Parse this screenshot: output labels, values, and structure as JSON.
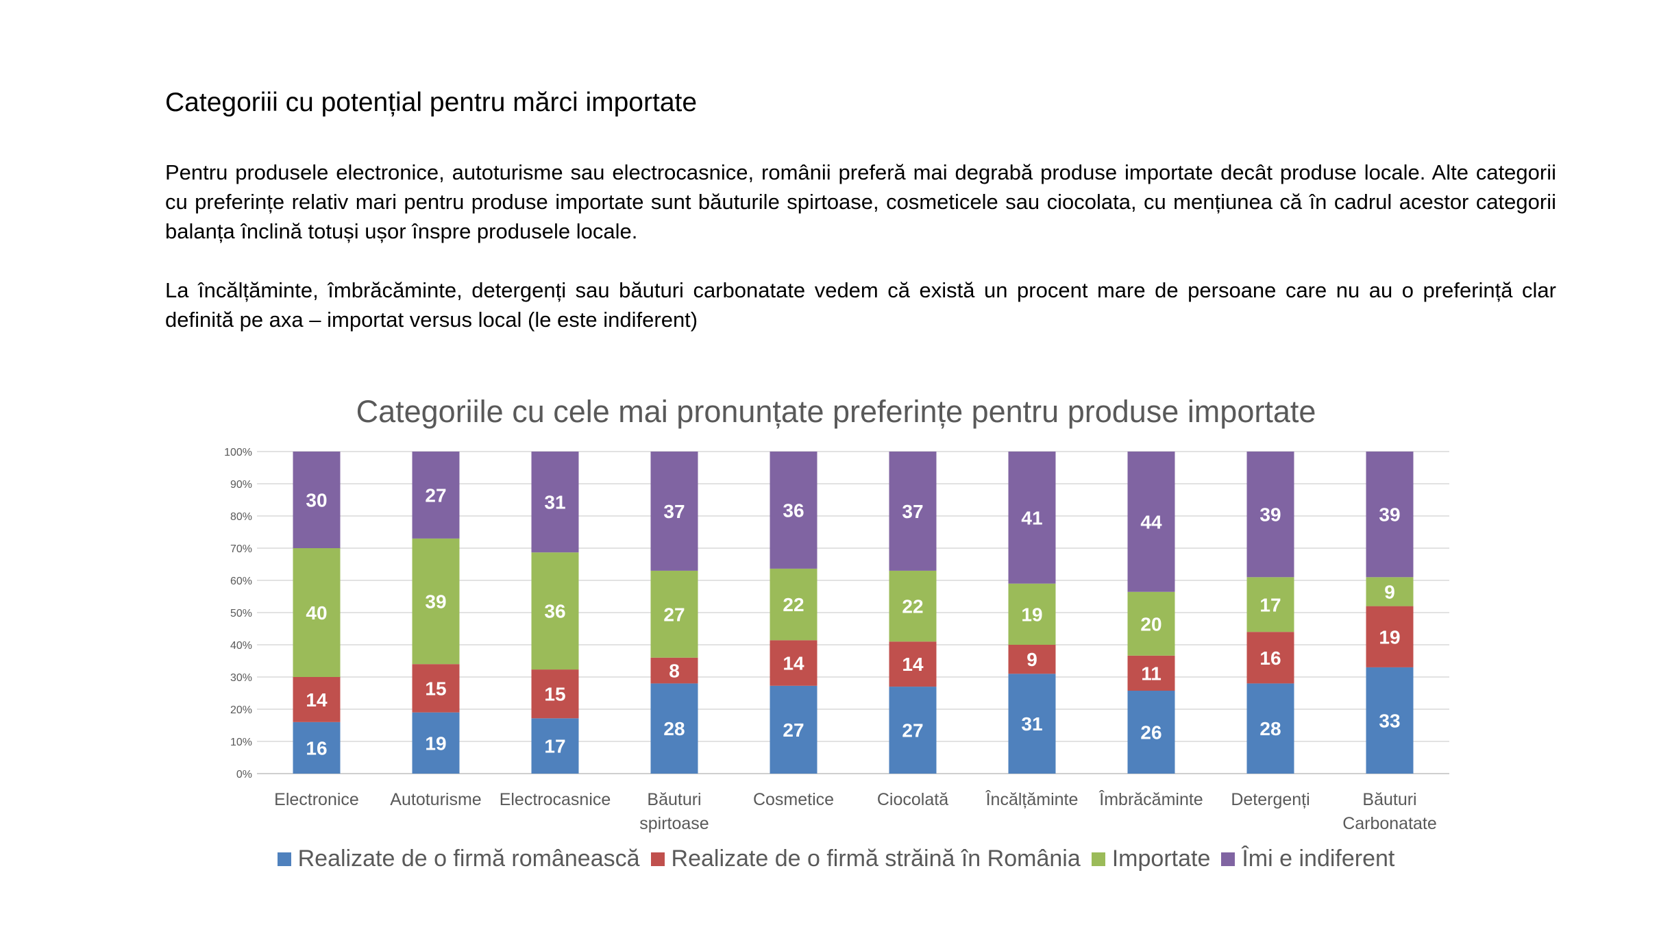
{
  "slide": {
    "title": "Categoriii cu potențial pentru mărci importate",
    "paragraph1": "Pentru produsele electronice, autoturisme sau electrocasnice, românii preferă mai degrabă produse importate decât produse locale. Alte categorii cu preferințe relativ mari pentru produse importate sunt băuturile spirtoase, cosmeticele sau ciocolata, cu mențiunea că în cadrul acestor categorii balanța înclină totuși ușor înspre produsele locale.",
    "paragraph2": "La încălțăminte, îmbrăcăminte, detergenți sau băuturi carbonatate vedem că există un procent mare de persoane care nu au o preferință clar definită pe axa – importat versus local (le este indiferent)"
  },
  "chart_data": {
    "type": "bar",
    "stacked": "percent",
    "title": "Categoriile cu cele mai pronunțate  preferințe pentru produse importate",
    "categories": [
      [
        "Electronice"
      ],
      [
        "Autoturisme"
      ],
      [
        "Electrocasnice"
      ],
      [
        "Băuturi",
        "spirtoase"
      ],
      [
        "Cosmetice"
      ],
      [
        "Ciocolată"
      ],
      [
        "Încălțăminte"
      ],
      [
        "Îmbrăcăminte"
      ],
      [
        "Detergenți"
      ],
      [
        "Băuturi",
        "Carbonatate"
      ]
    ],
    "series": [
      {
        "name": "Realizate de o firmă românească",
        "color": "#4F81BD",
        "values": [
          16,
          19,
          17,
          28,
          27,
          27,
          31,
          26,
          28,
          33
        ]
      },
      {
        "name": "Realizate de o firmă străină în România",
        "color": "#C0504D",
        "values": [
          14,
          15,
          15,
          8,
          14,
          14,
          9,
          11,
          16,
          19
        ]
      },
      {
        "name": "Importate",
        "color": "#9BBB59",
        "values": [
          40,
          39,
          36,
          27,
          22,
          22,
          19,
          20,
          17,
          9
        ]
      },
      {
        "name": "Îmi e indiferent",
        "color": "#8064A2",
        "values": [
          30,
          27,
          31,
          37,
          36,
          37,
          41,
          44,
          39,
          39
        ]
      }
    ],
    "y_ticks": [
      "0%",
      "10%",
      "20%",
      "30%",
      "40%",
      "50%",
      "60%",
      "70%",
      "80%",
      "90%",
      "100%"
    ],
    "ylim": [
      0,
      100
    ],
    "grid": true,
    "legend_position": "bottom",
    "data_label_color": "#ffffff"
  }
}
